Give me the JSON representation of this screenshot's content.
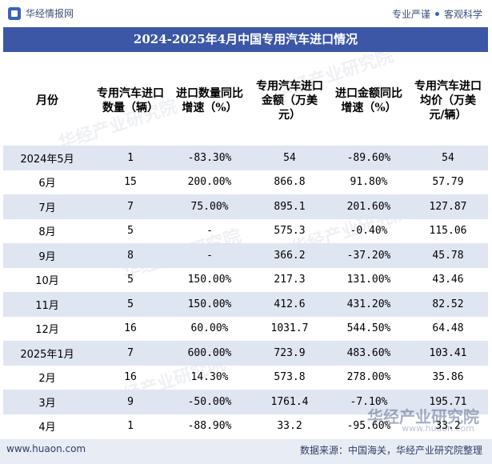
{
  "header": {
    "logo_text": "华经情报网",
    "tagline_left": "专业严谨",
    "tagline_right": "客观科学"
  },
  "title": "2024-2025年4月中国专用汽车进口情况",
  "columns": [
    "月份",
    "专用汽车进口数量（辆）",
    "进口数量同比增速（%）",
    "专用汽车进口金额（万美元）",
    "进口金额同比增速（%）",
    "专用汽车进口均价（万美元/辆）"
  ],
  "rows": [
    {
      "month": "2024年5月",
      "qty": "1",
      "qty_yoy": "-83.30%",
      "amount": "54",
      "amt_yoy": "-89.60%",
      "avg": "54"
    },
    {
      "month": "6月",
      "qty": "15",
      "qty_yoy": "200.00%",
      "amount": "866.8",
      "amt_yoy": "91.80%",
      "avg": "57.79"
    },
    {
      "month": "7月",
      "qty": "7",
      "qty_yoy": "75.00%",
      "amount": "895.1",
      "amt_yoy": "201.60%",
      "avg": "127.87"
    },
    {
      "month": "8月",
      "qty": "5",
      "qty_yoy": "-",
      "amount": "575.3",
      "amt_yoy": "-0.40%",
      "avg": "115.06"
    },
    {
      "month": "9月",
      "qty": "8",
      "qty_yoy": "-",
      "amount": "366.2",
      "amt_yoy": "-37.20%",
      "avg": "45.78"
    },
    {
      "month": "10月",
      "qty": "5",
      "qty_yoy": "150.00%",
      "amount": "217.3",
      "amt_yoy": "131.00%",
      "avg": "43.46"
    },
    {
      "month": "11月",
      "qty": "5",
      "qty_yoy": "150.00%",
      "amount": "412.6",
      "amt_yoy": "431.20%",
      "avg": "82.52"
    },
    {
      "month": "12月",
      "qty": "16",
      "qty_yoy": "60.00%",
      "amount": "1031.7",
      "amt_yoy": "544.50%",
      "avg": "64.48"
    },
    {
      "month": "2025年1月",
      "qty": "7",
      "qty_yoy": "600.00%",
      "amount": "723.9",
      "amt_yoy": "483.60%",
      "avg": "103.41"
    },
    {
      "month": "2月",
      "qty": "16",
      "qty_yoy": "14.30%",
      "amount": "573.8",
      "amt_yoy": "278.00%",
      "avg": "35.86"
    },
    {
      "month": "3月",
      "qty": "9",
      "qty_yoy": "-50.00%",
      "amount": "1761.4",
      "amt_yoy": "-7.10%",
      "avg": "195.71"
    },
    {
      "month": "4月",
      "qty": "1",
      "qty_yoy": "-88.90%",
      "amount": "33.2",
      "amt_yoy": "-95.60%",
      "avg": "33.2"
    }
  ],
  "footer": {
    "url": "www.huaon.com",
    "source": "数据来源：中国海关，华经产业研究院整理"
  },
  "watermark": {
    "main": "华经产业研究院",
    "sub": "www.huaon.com"
  },
  "colors": {
    "title_bg": "#3b57a6",
    "row_shade": "#dfe5f1",
    "negative_text": "#5b7fd1",
    "footer_bg": "#e8ecf4"
  },
  "chart_data": {
    "type": "table",
    "title": "2024-2025年4月中国专用汽车进口情况",
    "columns": [
      "月份",
      "专用汽车进口数量（辆）",
      "进口数量同比增速（%）",
      "专用汽车进口金额（万美元）",
      "进口金额同比增速（%）",
      "专用汽车进口均价（万美元/辆）"
    ],
    "categories": [
      "2024年5月",
      "6月",
      "7月",
      "8月",
      "9月",
      "10月",
      "11月",
      "12月",
      "2025年1月",
      "2月",
      "3月",
      "4月"
    ],
    "series": [
      {
        "name": "专用汽车进口数量（辆）",
        "values": [
          1,
          15,
          7,
          5,
          8,
          5,
          5,
          16,
          7,
          16,
          9,
          1
        ]
      },
      {
        "name": "进口数量同比增速（%）",
        "values": [
          -83.3,
          200.0,
          75.0,
          null,
          null,
          150.0,
          150.0,
          60.0,
          600.0,
          14.3,
          -50.0,
          -88.9
        ]
      },
      {
        "name": "专用汽车进口金额（万美元）",
        "values": [
          54,
          866.8,
          895.1,
          575.3,
          366.2,
          217.3,
          412.6,
          1031.7,
          723.9,
          573.8,
          1761.4,
          33.2
        ]
      },
      {
        "name": "进口金额同比增速（%）",
        "values": [
          -89.6,
          91.8,
          201.6,
          -0.4,
          -37.2,
          131.0,
          431.2,
          544.5,
          483.6,
          278.0,
          -7.1,
          -95.6
        ]
      },
      {
        "name": "专用汽车进口均价（万美元/辆）",
        "values": [
          54,
          57.79,
          127.87,
          115.06,
          45.78,
          43.46,
          82.52,
          64.48,
          103.41,
          35.86,
          195.71,
          33.2
        ]
      }
    ]
  }
}
